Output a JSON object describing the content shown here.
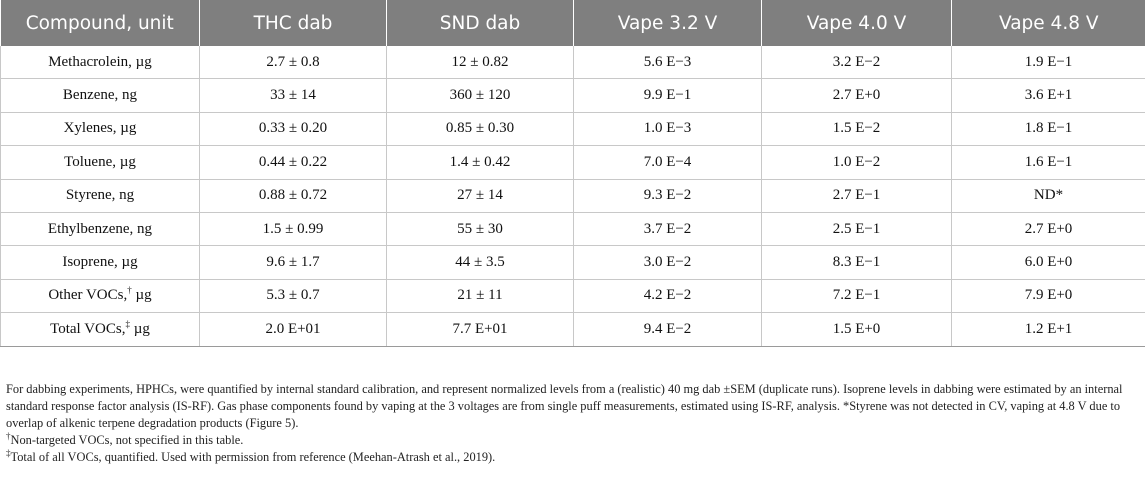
{
  "table": {
    "headers": [
      "Compound, unit",
      "THC dab",
      "SND dab",
      "Vape 3.2 V",
      "Vape 4.0 V",
      "Vape 4.8 V"
    ],
    "rows": [
      {
        "compound": "Methacrolein, µg",
        "mark": "",
        "unit": "",
        "values": [
          "2.7 ± 0.8",
          "12 ± 0.82",
          "5.6 E−3",
          "3.2 E−2",
          "1.9 E−1"
        ]
      },
      {
        "compound": "Benzene, ng",
        "mark": "",
        "unit": "",
        "values": [
          "33 ± 14",
          "360 ± 120",
          "9.9 E−1",
          "2.7 E+0",
          "3.6 E+1"
        ]
      },
      {
        "compound": "Xylenes, µg",
        "mark": "",
        "unit": "",
        "values": [
          "0.33 ± 0.20",
          "0.85 ± 0.30",
          "1.0 E−3",
          "1.5 E−2",
          "1.8 E−1"
        ]
      },
      {
        "compound": "Toluene, µg",
        "mark": "",
        "unit": "",
        "values": [
          "0.44 ± 0.22",
          "1.4 ± 0.42",
          "7.0 E−4",
          "1.0 E−2",
          "1.6 E−1"
        ]
      },
      {
        "compound": "Styrene, ng",
        "mark": "",
        "unit": "",
        "values": [
          "0.88 ± 0.72",
          "27 ± 14",
          "9.3 E−2",
          "2.7 E−1",
          "ND*"
        ]
      },
      {
        "compound": "Ethylbenzene, ng",
        "mark": "",
        "unit": "",
        "values": [
          "1.5 ± 0.99",
          "55 ± 30",
          "3.7 E−2",
          "2.5 E−1",
          "2.7 E+0"
        ]
      },
      {
        "compound": "Isoprene, µg",
        "mark": "",
        "unit": "",
        "values": [
          "9.6 ± 1.7",
          "44 ± 3.5",
          "3.0 E−2",
          "8.3 E−1",
          "6.0 E+0"
        ]
      },
      {
        "compound": "Other VOCs,",
        "mark": "†",
        "unit": " µg",
        "values": [
          "5.3 ± 0.7",
          "21 ± 11",
          "4.2 E−2",
          "7.2 E−1",
          "7.9 E+0"
        ]
      },
      {
        "compound": "Total VOCs,",
        "mark": "‡",
        "unit": " µg",
        "values": [
          "2.0 E+01",
          "7.7 E+01",
          "9.4 E−2",
          "1.5 E+0",
          "1.2 E+1"
        ]
      }
    ]
  },
  "notes": {
    "main": "For dabbing experiments, HPHCs, were quantified by internal standard calibration, and represent normalized levels from a (realistic) 40 mg dab ±SEM (duplicate runs). Isoprene levels in dabbing were estimated by an internal standard response factor analysis (IS-RF). Gas phase components found by vaping at the 3 voltages are from single puff measurements, estimated using IS-RF, analysis. *Styrene was not detected in CV, vaping at 4.8 V due to overlap of alkenic terpene degradation products (Figure 5).",
    "dagger_mark": "†",
    "dagger": "Non-targeted VOCs, not specified in this table.",
    "ddagger_mark": "‡",
    "ddagger": "Total of all VOCs, quantified. Used with permission from reference (Meehan-Atrash et al., 2019)."
  }
}
